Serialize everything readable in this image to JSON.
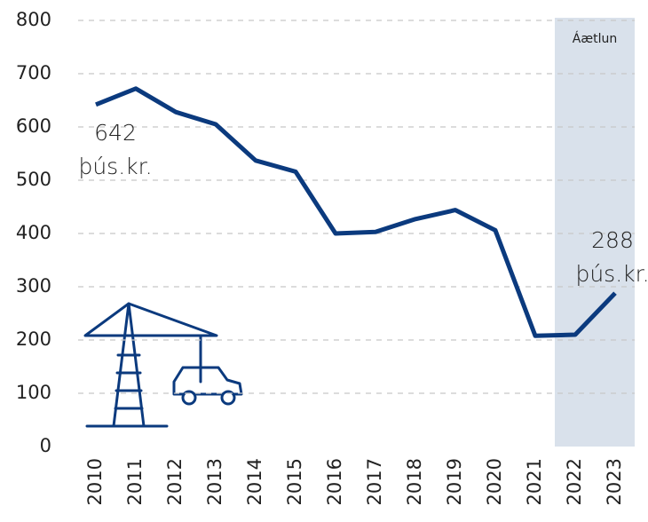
{
  "chart_data": {
    "type": "line",
    "categories": [
      "2010",
      "2011",
      "2012",
      "2013",
      "2014",
      "2015",
      "2016",
      "2017",
      "2018",
      "2019",
      "2020",
      "2021",
      "2022",
      "2023"
    ],
    "series": [
      {
        "color": "#0b3a7e",
        "values": [
          642,
          672,
          628,
          605,
          537,
          516,
          400,
          403,
          427,
          444,
          406,
          208,
          210,
          288
        ]
      }
    ],
    "ylim": [
      0,
      800
    ],
    "yticks": [
      0,
      100,
      200,
      300,
      400,
      500,
      600,
      700,
      800
    ],
    "grid": true,
    "forecast_label": "Áætlun",
    "annotations": [
      {
        "lines": [
          "642",
          "þús.kr."
        ]
      },
      {
        "lines": [
          "288",
          "þús.kr."
        ]
      }
    ]
  }
}
